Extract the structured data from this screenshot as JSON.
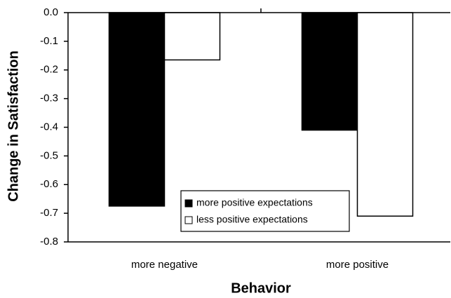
{
  "chart_data": {
    "type": "bar",
    "categories": [
      "more negative",
      "more positive"
    ],
    "series": [
      {
        "name": "more positive expectations",
        "color": "#000000",
        "values": [
          -0.675,
          -0.41
        ]
      },
      {
        "name": "less positive expectations",
        "color": "#ffffff",
        "values": [
          -0.165,
          -0.71
        ]
      }
    ],
    "xlabel": "Behavior",
    "ylabel": "Change in Satisfaction",
    "ylim": [
      -0.8,
      0
    ],
    "yticks": [
      {
        "value": 0,
        "label": "0.0"
      },
      -0.1,
      -0.2,
      -0.3,
      -0.4,
      -0.5,
      -0.6,
      -0.7,
      -0.8
    ]
  }
}
